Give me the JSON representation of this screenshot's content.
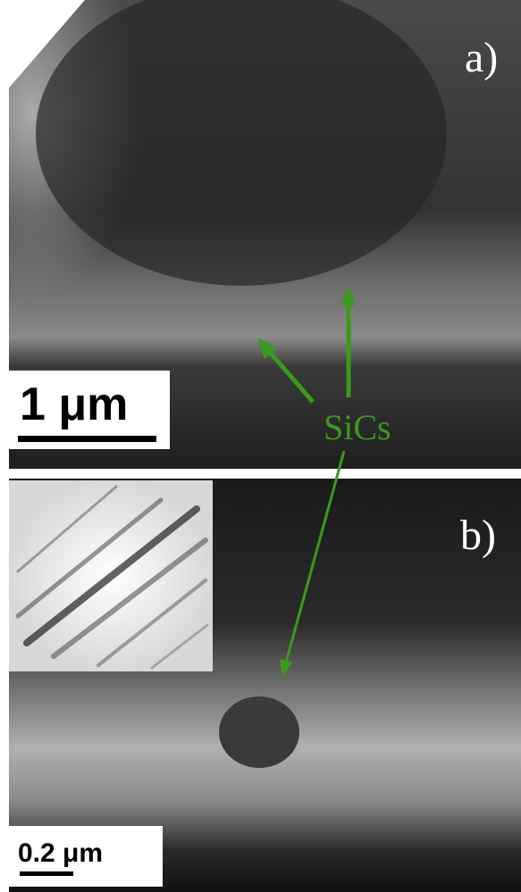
{
  "panels": [
    {
      "label": "a)",
      "scale_bar": "1 μm"
    },
    {
      "label": "b)",
      "scale_bar": "0.2 μm"
    }
  ],
  "annotation": "SiCs"
}
